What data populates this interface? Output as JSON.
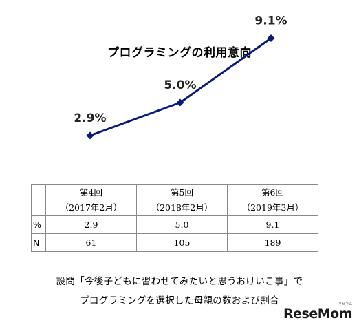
{
  "chart_data": {
    "type": "line",
    "title": "プログラミングの利用意向",
    "categories": [
      "第4回",
      "第5回",
      "第6回"
    ],
    "series": [
      {
        "values": [
          2.9,
          5.0,
          9.1
        ],
        "labels": [
          "2.9%",
          "5.0%",
          "9.1%"
        ]
      }
    ],
    "line_color": "#0b1a7a",
    "ylim": [
      0,
      10
    ],
    "grid": false
  },
  "table": {
    "headers": [
      {
        "round": "第4回",
        "date": "（2017年2月）"
      },
      {
        "round": "第5回",
        "date": "（2018年2月）"
      },
      {
        "round": "第6回",
        "date": "（2019年3月）"
      }
    ],
    "rows": [
      {
        "label": "%",
        "values": [
          "2.9",
          "5.0",
          "9.1"
        ]
      },
      {
        "label": "N",
        "values": [
          "61",
          "105",
          "189"
        ]
      }
    ]
  },
  "caption": {
    "line1": "設問「今後子どもに習わせてみたいと思うおけいこ事」で",
    "line2": "プログラミングを選択した母親の数および割合"
  },
  "logo": {
    "text": "ReseMom",
    "sub": "リセマム"
  }
}
